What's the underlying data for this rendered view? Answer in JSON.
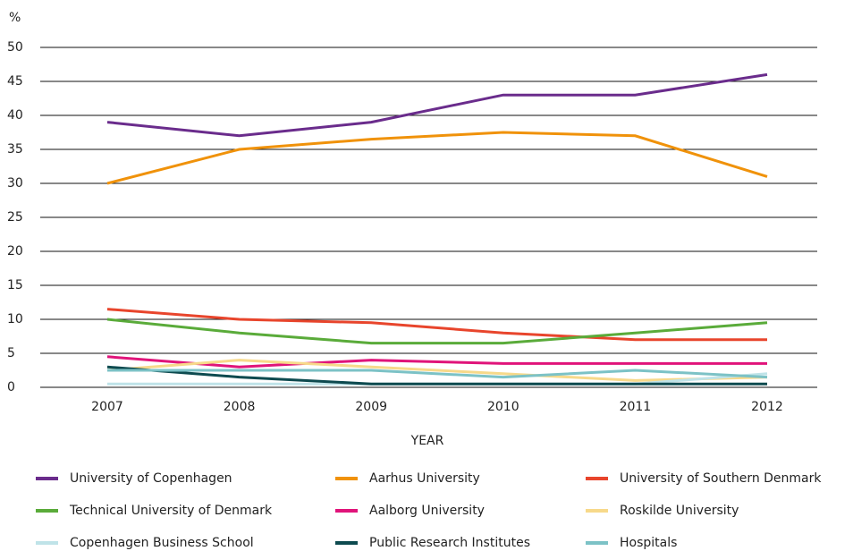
{
  "chart_data": {
    "type": "line",
    "y_unit": "%",
    "x_label": "YEAR",
    "categories": [
      "2007",
      "2008",
      "2009",
      "2010",
      "2011",
      "2012"
    ],
    "ylim": [
      0,
      50
    ],
    "yticks": [
      0,
      5,
      10,
      15,
      20,
      25,
      30,
      35,
      40,
      45,
      50
    ],
    "grid": true,
    "series": [
      {
        "name": "University of Copenhagen",
        "color": "#6a2c8c",
        "values": [
          39,
          37,
          39,
          43,
          43,
          46
        ]
      },
      {
        "name": "Aarhus University",
        "color": "#f0920a",
        "values": [
          30,
          35,
          36.5,
          37.5,
          37,
          31
        ]
      },
      {
        "name": "University of Southern Denmark",
        "color": "#e8452c",
        "values": [
          11.5,
          10,
          9.5,
          8,
          7,
          7
        ]
      },
      {
        "name": "Technical University of Denmark",
        "color": "#5aab3a",
        "values": [
          10,
          8,
          6.5,
          6.5,
          8,
          9.5
        ]
      },
      {
        "name": "Aalborg University",
        "color": "#e0147a",
        "values": [
          4.5,
          3,
          4,
          3.5,
          3.5,
          3.5
        ]
      },
      {
        "name": "Roskilde University",
        "color": "#f7d98a",
        "values": [
          2.5,
          4,
          3,
          2,
          1,
          1.5
        ]
      },
      {
        "name": "Copenhagen Business School",
        "color": "#bfe3e8",
        "values": [
          0.5,
          0.5,
          0.5,
          0.5,
          0.5,
          2
        ]
      },
      {
        "name": "Public Research Institutes",
        "color": "#0d4a4f",
        "values": [
          3,
          1.5,
          0.5,
          0.5,
          0.5,
          0.5
        ]
      },
      {
        "name": "Hospitals",
        "color": "#7cc2c6",
        "values": [
          2.5,
          2.5,
          2.5,
          1.5,
          2.5,
          1.5
        ]
      }
    ]
  }
}
